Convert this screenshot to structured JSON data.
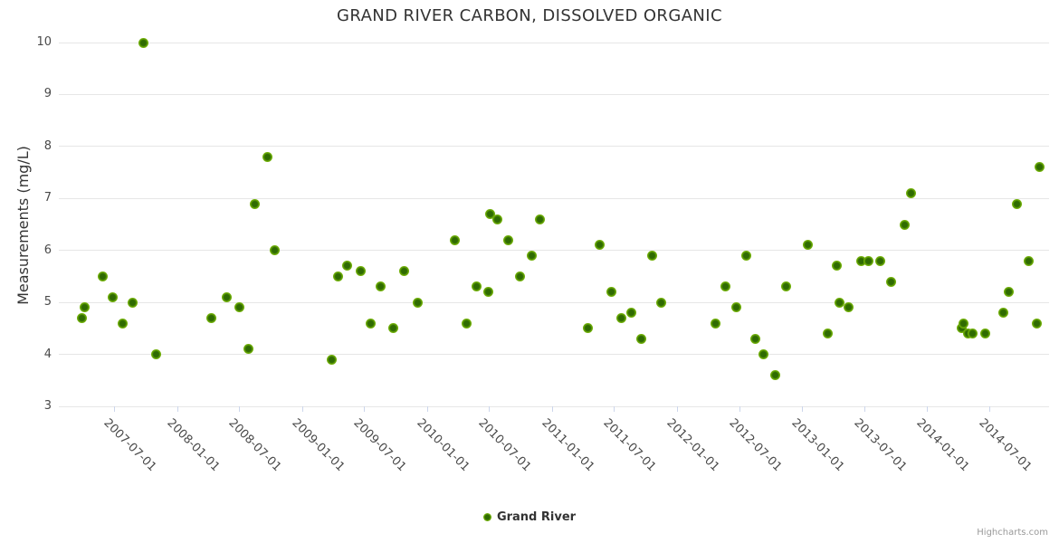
{
  "title": "GRAND RIVER CARBON, DISSOLVED ORGANIC",
  "legend": {
    "label": "Grand River"
  },
  "credits": "Highcharts.com",
  "colors": {
    "point_outer": "#82c00e",
    "point_core": "#2f6b02",
    "grid": "#e6e6e6",
    "axis_line": "#ccd6eb",
    "title_text": "#333333",
    "tick_label_text": "#4a4a4a",
    "credits_text": "#999999"
  },
  "chart_data": {
    "type": "scatter",
    "title": "GRAND RIVER CARBON, DISSOLVED ORGANIC",
    "xlabel": "",
    "ylabel": "Measurements (mg/L)",
    "ylim": [
      3,
      10
    ],
    "grid": "horizontal only",
    "legend_position": "bottom center",
    "y_axis": {
      "title": "Measurements (mg/L)",
      "ticks": [
        3,
        4,
        5,
        6,
        7,
        8,
        9,
        10
      ]
    },
    "x_axis": {
      "type": "datetime",
      "tick_labels": [
        "2007-07-01",
        "2008-01-01",
        "2008-07-01",
        "2009-01-01",
        "2009-07-01",
        "2010-01-01",
        "2010-07-01",
        "2011-01-01",
        "2011-07-01",
        "2012-01-01",
        "2012-07-01",
        "2013-01-01",
        "2013-07-01",
        "2014-01-01",
        "2014-07-01"
      ],
      "range_start": "2007-01-21",
      "range_end": "2014-12-24"
    },
    "series": [
      {
        "name": "Grand River",
        "points": [
          [
            "2007-03-30",
            4.7
          ],
          [
            "2007-04-06",
            4.9
          ],
          [
            "2007-05-30",
            5.5
          ],
          [
            "2007-06-28",
            5.1
          ],
          [
            "2007-07-25",
            4.6
          ],
          [
            "2007-08-25",
            5.0
          ],
          [
            "2007-09-24",
            10.0
          ],
          [
            "2007-11-01",
            4.0
          ],
          [
            "2008-04-10",
            4.7
          ],
          [
            "2008-05-25",
            5.1
          ],
          [
            "2008-07-01",
            4.9
          ],
          [
            "2008-07-28",
            4.1
          ],
          [
            "2008-08-16",
            6.9
          ],
          [
            "2008-09-21",
            7.8
          ],
          [
            "2008-10-13",
            6.0
          ],
          [
            "2009-03-28",
            3.9
          ],
          [
            "2009-04-16",
            5.5
          ],
          [
            "2009-05-13",
            5.7
          ],
          [
            "2009-06-21",
            5.6
          ],
          [
            "2009-07-21",
            4.6
          ],
          [
            "2009-08-18",
            5.3
          ],
          [
            "2009-09-24",
            4.5
          ],
          [
            "2009-10-25",
            5.6
          ],
          [
            "2009-12-04",
            5.0
          ],
          [
            "2010-03-22",
            6.2
          ],
          [
            "2010-04-27",
            4.6
          ],
          [
            "2010-05-26",
            5.3
          ],
          [
            "2010-06-28",
            5.2
          ],
          [
            "2010-07-05",
            6.7
          ],
          [
            "2010-07-25",
            6.6
          ],
          [
            "2010-08-25",
            6.2
          ],
          [
            "2010-09-29",
            5.5
          ],
          [
            "2010-11-03",
            5.9
          ],
          [
            "2010-11-27",
            6.6
          ],
          [
            "2011-04-17",
            4.5
          ],
          [
            "2011-05-20",
            6.1
          ],
          [
            "2011-06-25",
            5.2
          ],
          [
            "2011-07-22",
            4.7
          ],
          [
            "2011-08-21",
            4.8
          ],
          [
            "2011-09-19",
            4.3
          ],
          [
            "2011-10-22",
            5.9
          ],
          [
            "2011-11-17",
            5.0
          ],
          [
            "2012-04-22",
            4.6
          ],
          [
            "2012-05-22",
            5.3
          ],
          [
            "2012-06-24",
            4.9
          ],
          [
            "2012-07-21",
            5.9
          ],
          [
            "2012-08-18",
            4.3
          ],
          [
            "2012-09-11",
            4.0
          ],
          [
            "2012-10-15",
            3.6
          ],
          [
            "2012-11-15",
            5.3
          ],
          [
            "2013-01-17",
            6.1
          ],
          [
            "2013-03-17",
            4.4
          ],
          [
            "2013-04-12",
            5.7
          ],
          [
            "2013-04-21",
            5.0
          ],
          [
            "2013-05-17",
            4.9
          ],
          [
            "2013-06-22",
            5.8
          ],
          [
            "2013-07-13",
            5.8
          ],
          [
            "2013-08-17",
            5.8
          ],
          [
            "2013-09-18",
            5.4
          ],
          [
            "2013-10-28",
            6.5
          ],
          [
            "2013-11-15",
            7.1
          ],
          [
            "2014-04-12",
            4.5
          ],
          [
            "2014-04-17",
            4.6
          ],
          [
            "2014-04-30",
            4.4
          ],
          [
            "2014-05-14",
            4.4
          ],
          [
            "2014-06-20",
            4.4
          ],
          [
            "2014-08-13",
            4.8
          ],
          [
            "2014-08-29",
            5.2
          ],
          [
            "2014-09-20",
            6.9
          ],
          [
            "2014-10-24",
            5.8
          ],
          [
            "2014-11-19",
            4.6
          ],
          [
            "2014-11-25",
            7.6
          ]
        ]
      }
    ]
  }
}
